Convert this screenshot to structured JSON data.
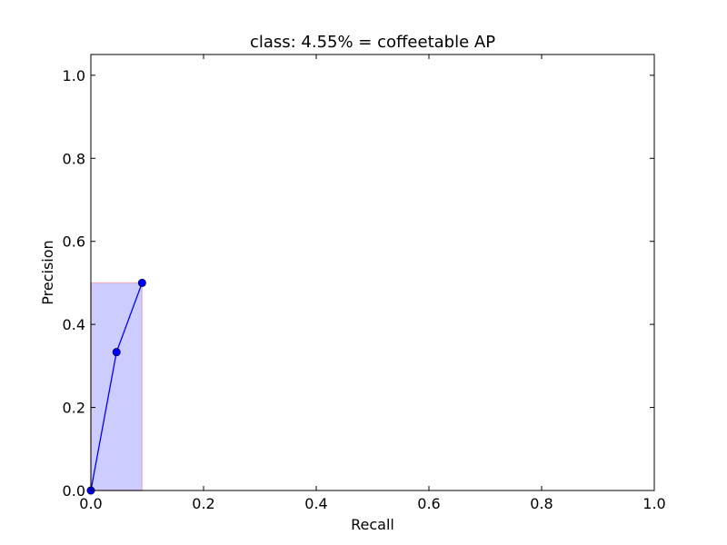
{
  "chart_data": {
    "type": "line",
    "title": "class: 4.55% = coffeetable AP",
    "xlabel": "Recall",
    "ylabel": "Precision",
    "xlim": [
      0.0,
      1.0
    ],
    "ylim": [
      0.0,
      1.05
    ],
    "xticks": [
      0.0,
      0.2,
      0.4,
      0.6,
      0.8,
      1.0
    ],
    "xtick_labels": [
      "0.0",
      "0.2",
      "0.4",
      "0.6",
      "0.8",
      "1.0"
    ],
    "yticks": [
      0.0,
      0.2,
      0.4,
      0.6,
      0.8,
      1.0
    ],
    "ytick_labels": [
      "0.0",
      "0.2",
      "0.4",
      "0.6",
      "0.8",
      "1.0"
    ],
    "grid": false,
    "series": [
      {
        "x": [
          0.0,
          0.0455,
          0.0909
        ],
        "y": [
          0.0,
          0.3333,
          0.5
        ],
        "color": "#0000ff",
        "marker": "circle"
      }
    ],
    "fill": {
      "x": [
        0.0,
        0.0909
      ],
      "y": [
        0.5,
        0.5
      ],
      "color": "#0000ff",
      "edge_color": "#ff0000"
    }
  }
}
